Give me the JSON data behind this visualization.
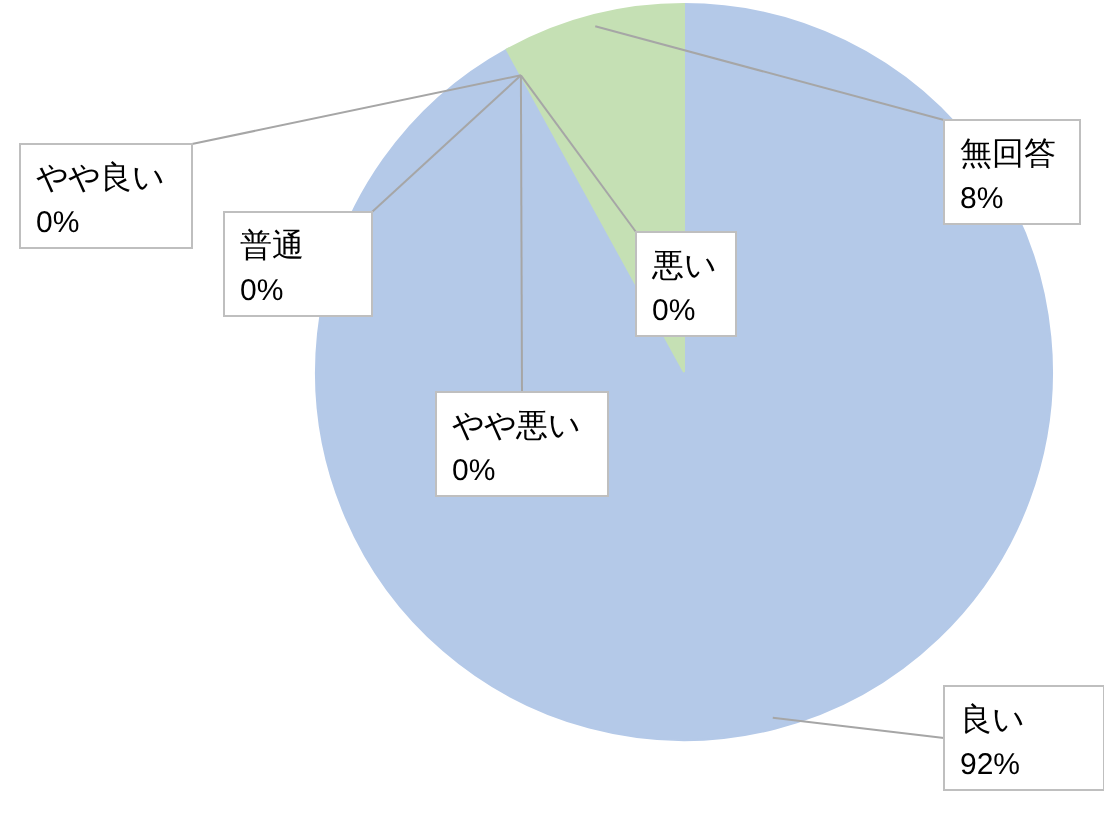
{
  "chart_data": {
    "type": "pie",
    "categories": [
      "良い",
      "やや良い",
      "普通",
      "やや悪い",
      "悪い",
      "無回答"
    ],
    "values": [
      92,
      0,
      0,
      0,
      0,
      8
    ],
    "value_labels": [
      "92%",
      "0%",
      "0%",
      "0%",
      "0%",
      "8%"
    ],
    "colors": [
      "#b4c9e8",
      "#f0b080",
      "#c8c8c8",
      "#ffd966",
      "#9dc3e6",
      "#c5e0b4"
    ]
  }
}
